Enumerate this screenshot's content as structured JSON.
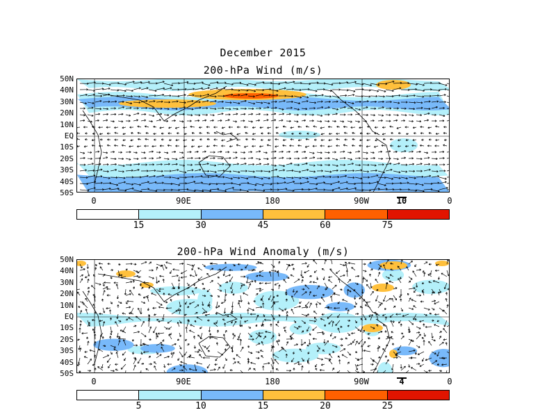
{
  "header": {
    "month_title": "December 2015"
  },
  "panels": [
    {
      "id": "wind",
      "title": "200-hPa Wind (m/s)",
      "lat_labels": [
        "50N",
        "40N",
        "30N",
        "20N",
        "10N",
        "EQ",
        "10S",
        "20S",
        "30S",
        "40S",
        "50S"
      ],
      "lon_labels": [
        "0",
        "90E",
        "180",
        "90W",
        "0"
      ],
      "ref_vector_label": "10",
      "colorbar": {
        "colors": [
          "#ffffff",
          "#b4f0fa",
          "#78b9fa",
          "#ffc03c",
          "#ff6000",
          "#e11400"
        ],
        "labels": [
          "15",
          "30",
          "45",
          "60",
          "75"
        ]
      }
    },
    {
      "id": "anomaly",
      "title": "200-hPa Wind Anomaly (m/s)",
      "lat_labels": [
        "50N",
        "40N",
        "30N",
        "20N",
        "10N",
        "EQ",
        "10S",
        "20S",
        "30S",
        "40S",
        "50S"
      ],
      "lon_labels": [
        "0",
        "90E",
        "180",
        "90W",
        "0"
      ],
      "ref_vector_label": "4",
      "colorbar": {
        "colors": [
          "#ffffff",
          "#b4f0fa",
          "#78b9fa",
          "#ffc03c",
          "#ff6000",
          "#e11400"
        ],
        "labels": [
          "5",
          "10",
          "15",
          "20",
          "25"
        ]
      }
    }
  ],
  "palette": {
    "light_blue": "#b4f0fa",
    "mid_blue": "#78b9fa",
    "orange_light": "#ffc03c",
    "orange": "#ff6000",
    "grid": "#000000"
  }
}
